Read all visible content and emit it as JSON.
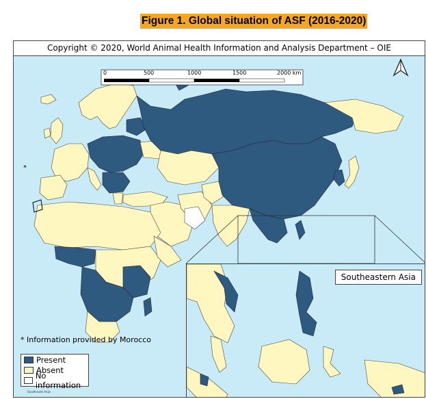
{
  "figure_title": "Figure 1. Global situation of ASF (2016-2020)",
  "copyright": "Copyright © 2020, World Animal Health Information and Analysis Department – OIE",
  "scale_bar": {
    "labels": [
      "0",
      "500",
      "1000",
      "1500",
      "2000 km"
    ]
  },
  "footnote": "* Information provided by Morocco",
  "asterisk": "*",
  "legend": {
    "items": [
      {
        "label": "Present",
        "color": "#2e5a80"
      },
      {
        "label": "Absent",
        "color": "#fff7bf"
      },
      {
        "label": "No information",
        "color": "#ffffff"
      }
    ]
  },
  "inset": {
    "title": "Southeastern Asia"
  },
  "tiny_caption": "Southeast Asia",
  "colors": {
    "sea": "#c9ebf7",
    "present": "#2e5a80",
    "absent": "#fff7bf",
    "no_information": "#ffffff",
    "title_highlight": "#f5a623"
  },
  "icons": {
    "north_arrow": "north-arrow-icon"
  }
}
